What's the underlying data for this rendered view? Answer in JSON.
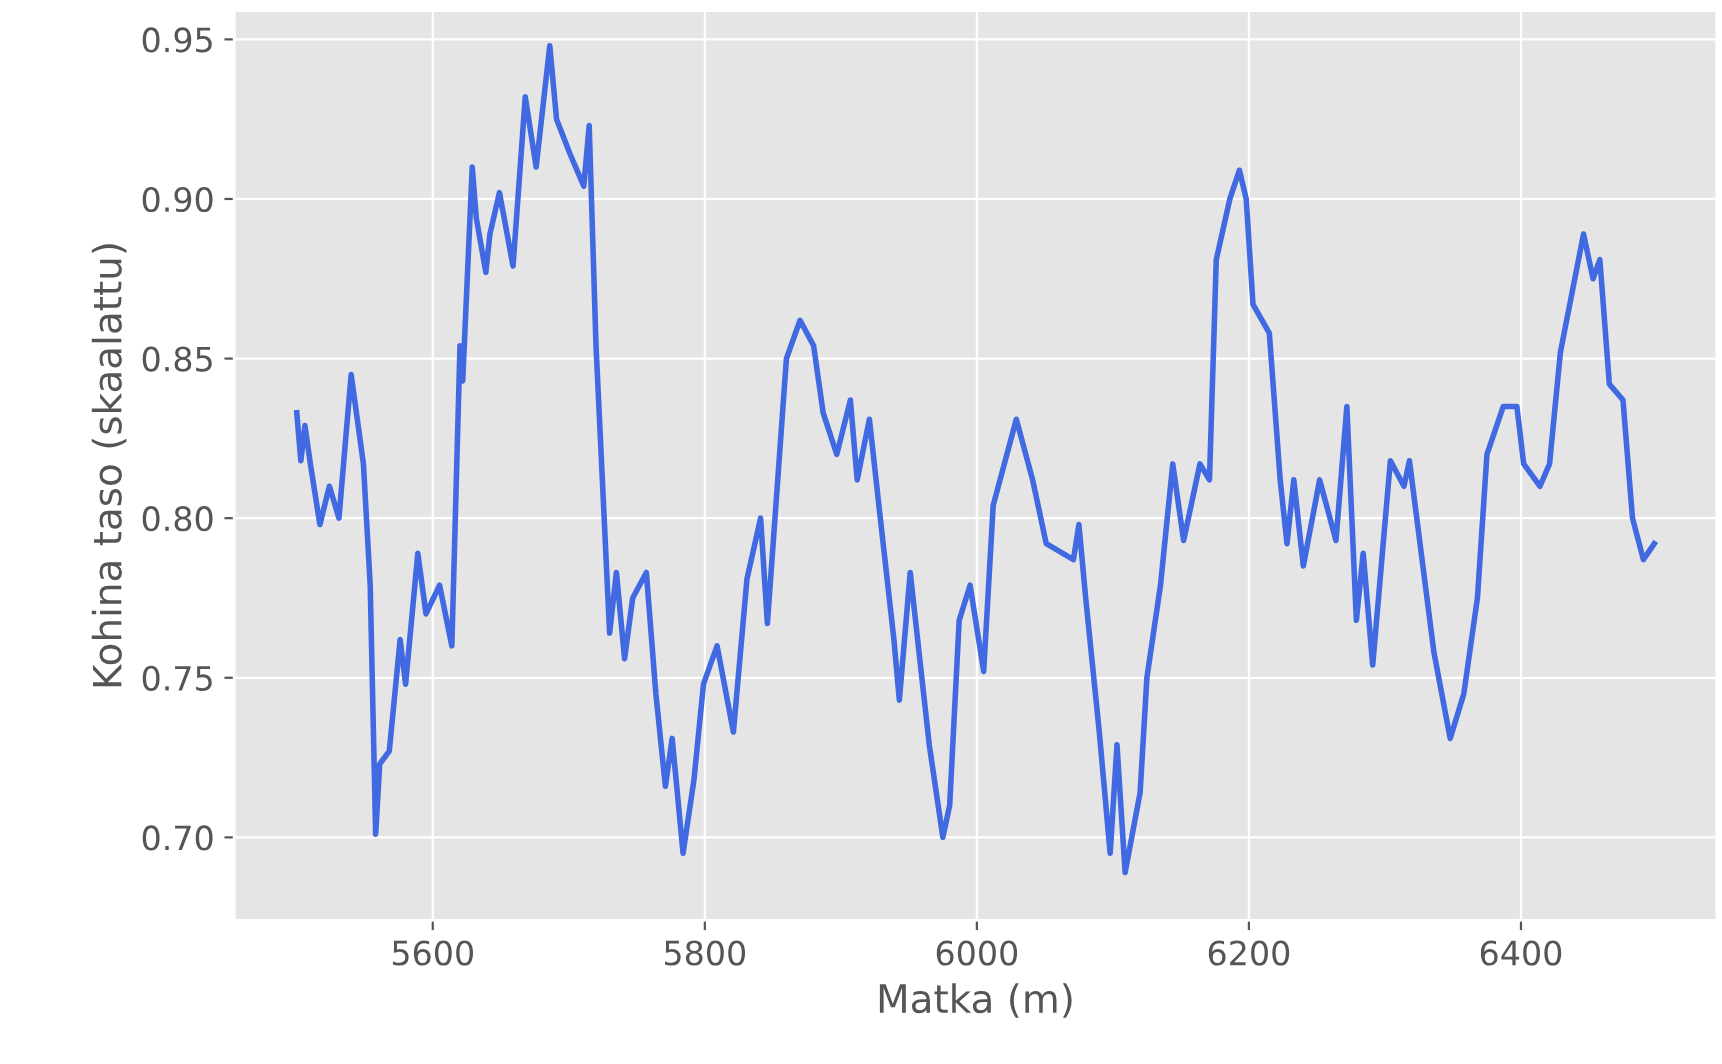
{
  "chart_data": {
    "type": "line",
    "xlabel": "Matka (m)",
    "ylabel": "Kohina taso (skaalattu)",
    "xlim": [
      5454,
      6544
    ],
    "xticks": [
      5600,
      5800,
      6000,
      6200,
      6400
    ],
    "ylim": [
      0.674,
      0.959
    ],
    "yticks": [
      {
        "value": 0.7,
        "label": "0.70"
      },
      {
        "value": 0.75,
        "label": "0.75"
      },
      {
        "value": 0.8,
        "label": "0.80"
      },
      {
        "value": 0.85,
        "label": "0.85"
      },
      {
        "value": 0.9,
        "label": "0.90"
      },
      {
        "value": 0.95,
        "label": "0.95"
      }
    ],
    "grid": true,
    "marker": "none",
    "line_style": "solid",
    "series": [
      {
        "color": "#4169e1",
        "x": [
          5500,
          5503,
          5506,
          5510,
          5517,
          5524,
          5531,
          5540,
          5549,
          5554,
          5558,
          5561,
          5568,
          5576,
          5580,
          5589,
          5595,
          5605,
          5614,
          5620,
          5622,
          5629,
          5632,
          5639,
          5642,
          5649,
          5659,
          5668,
          5676,
          5686,
          5691,
          5701,
          5711,
          5715,
          5720,
          5723,
          5730,
          5735,
          5741,
          5747,
          5757,
          5764,
          5771,
          5776,
          5784,
          5792,
          5799,
          5809,
          5821,
          5831,
          5841,
          5846,
          5860,
          5870,
          5880,
          5887,
          5897,
          5907,
          5912,
          5921,
          5929,
          5939,
          5943,
          5951,
          5965,
          5975,
          5980,
          5987,
          5995,
          6005,
          6012,
          6029,
          6041,
          6051,
          6071,
          6075,
          6080,
          6090,
          6098,
          6103,
          6109,
          6120,
          6125,
          6135,
          6144,
          6152,
          6164,
          6171,
          6176,
          6186,
          6193,
          6198,
          6203,
          6215,
          6223,
          6228,
          6233,
          6240,
          6252,
          6264,
          6272,
          6279,
          6284,
          6291,
          6304,
          6314,
          6318,
          6336,
          6348,
          6358,
          6368,
          6375,
          6387,
          6397,
          6402,
          6414,
          6421,
          6429,
          6446,
          6453,
          6458,
          6465,
          6475,
          6482,
          6490,
          6498
        ],
        "values": [
          0.833,
          0.818,
          0.829,
          0.817,
          0.798,
          0.81,
          0.8,
          0.845,
          0.817,
          0.779,
          0.701,
          0.723,
          0.727,
          0.762,
          0.748,
          0.789,
          0.77,
          0.779,
          0.76,
          0.854,
          0.843,
          0.91,
          0.894,
          0.877,
          0.889,
          0.902,
          0.879,
          0.932,
          0.91,
          0.948,
          0.925,
          0.914,
          0.904,
          0.923,
          0.854,
          0.827,
          0.764,
          0.783,
          0.756,
          0.775,
          0.783,
          0.745,
          0.716,
          0.731,
          0.695,
          0.718,
          0.748,
          0.76,
          0.733,
          0.781,
          0.8,
          0.767,
          0.85,
          0.862,
          0.854,
          0.833,
          0.82,
          0.837,
          0.812,
          0.831,
          0.8,
          0.762,
          0.743,
          0.783,
          0.729,
          0.7,
          0.71,
          0.768,
          0.779,
          0.752,
          0.804,
          0.831,
          0.812,
          0.792,
          0.787,
          0.798,
          0.775,
          0.733,
          0.695,
          0.729,
          0.689,
          0.714,
          0.75,
          0.779,
          0.817,
          0.793,
          0.817,
          0.812,
          0.881,
          0.9,
          0.909,
          0.9,
          0.867,
          0.858,
          0.812,
          0.792,
          0.812,
          0.785,
          0.812,
          0.793,
          0.835,
          0.768,
          0.789,
          0.754,
          0.818,
          0.81,
          0.818,
          0.758,
          0.731,
          0.745,
          0.775,
          0.82,
          0.835,
          0.835,
          0.817,
          0.81,
          0.817,
          0.852,
          0.889,
          0.875,
          0.881,
          0.842,
          0.837,
          0.8,
          0.787,
          0.792
        ]
      }
    ]
  }
}
